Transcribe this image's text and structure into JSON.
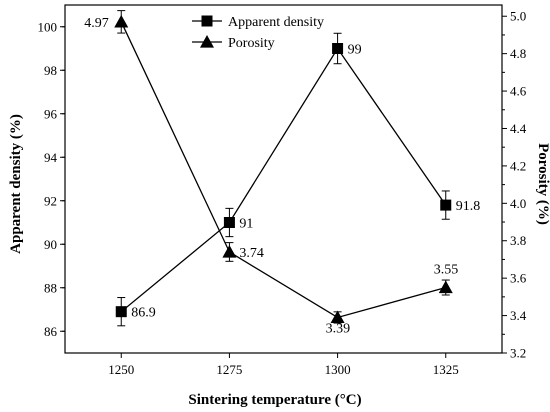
{
  "chart_data": {
    "type": "line",
    "xlabel": "Sintering temperature (°C)",
    "x": [
      1250,
      1275,
      1300,
      1325
    ],
    "x_tick_labels": [
      "1250",
      "1275",
      "1300",
      "1325"
    ],
    "xlim": [
      1237,
      1338
    ],
    "y_left": {
      "label": "Apparent density (%)",
      "lim": [
        85,
        101
      ],
      "ticks": [
        86,
        88,
        90,
        92,
        94,
        96,
        98,
        100
      ],
      "tick_labels": [
        "86",
        "88",
        "90",
        "92",
        "94",
        "96",
        "98",
        "100"
      ]
    },
    "y_right": {
      "label": "Porosity (%)",
      "lim": [
        3.2,
        5.06
      ],
      "ticks": [
        3.2,
        3.4,
        3.6,
        3.8,
        4.0,
        4.2,
        4.4,
        4.6,
        4.8,
        5.0
      ],
      "tick_labels": [
        "3.2",
        "3.4",
        "3.6",
        "3.8",
        "4.0",
        "4.2",
        "4.4",
        "4.6",
        "4.8",
        "5.0"
      ]
    },
    "series": [
      {
        "name": "Apparent density",
        "axis": "left",
        "marker": "square",
        "values": [
          86.9,
          91,
          99,
          91.8
        ],
        "errors": [
          0.65,
          0.65,
          0.7,
          0.65
        ],
        "labels": [
          "86.9",
          "91",
          "99",
          "91.8"
        ]
      },
      {
        "name": "Porosity",
        "axis": "right",
        "marker": "triangle",
        "values": [
          4.97,
          3.74,
          3.39,
          3.55
        ],
        "errors": [
          0.06,
          0.05,
          0.03,
          0.04
        ],
        "labels": [
          "4.97",
          "3.74",
          "3.39",
          "3.55"
        ]
      }
    ],
    "legend_position": "top-center",
    "grid": false
  }
}
